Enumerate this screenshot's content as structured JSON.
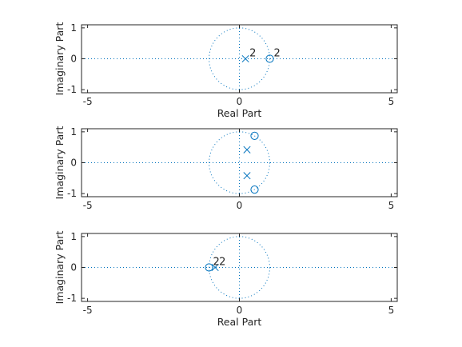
{
  "chart_data": [
    {
      "type": "scatter",
      "title": "",
      "xlabel": "Real Part",
      "ylabel": "Imaginary Part",
      "xlim": [
        -5.2,
        5.2
      ],
      "ylim": [
        -1.1,
        1.1
      ],
      "xticks": [
        -5,
        0,
        5
      ],
      "yticks": [
        -1,
        0,
        1
      ],
      "grid": false,
      "unit_circle": true,
      "zero_lines": true,
      "poles": [
        {
          "x": 0.2,
          "y": 0,
          "multiplicity_label": "2"
        }
      ],
      "zeros": [
        {
          "x": 1,
          "y": 0,
          "multiplicity_label": "2"
        }
      ]
    },
    {
      "type": "scatter",
      "title": "",
      "xlabel": "",
      "ylabel": "Imaginary Part",
      "xlim": [
        -5.2,
        5.2
      ],
      "ylim": [
        -1.1,
        1.1
      ],
      "xticks": [
        -5,
        0,
        5
      ],
      "yticks": [
        -1,
        0,
        1
      ],
      "grid": false,
      "unit_circle": true,
      "zero_lines": true,
      "poles": [
        {
          "x": 0.25,
          "y": 0.42
        },
        {
          "x": 0.25,
          "y": -0.42
        }
      ],
      "zeros": [
        {
          "x": 0.5,
          "y": 0.87
        },
        {
          "x": 0.5,
          "y": -0.87
        }
      ]
    },
    {
      "type": "scatter",
      "title": "",
      "xlabel": "Real Part",
      "ylabel": "Imaginary Part",
      "xlim": [
        -5.2,
        5.2
      ],
      "ylim": [
        -1.1,
        1.1
      ],
      "xticks": [
        -5,
        0,
        5
      ],
      "yticks": [
        -1,
        0,
        1
      ],
      "grid": false,
      "unit_circle": true,
      "zero_lines": true,
      "poles": [
        {
          "x": -0.8,
          "y": 0,
          "multiplicity_label": "2"
        }
      ],
      "zeros": [
        {
          "x": -1,
          "y": 0,
          "multiplicity_label": "2"
        }
      ]
    }
  ],
  "colors": {
    "marker": "#0072bd",
    "circle": "#0072bd",
    "axes": "#262626"
  }
}
